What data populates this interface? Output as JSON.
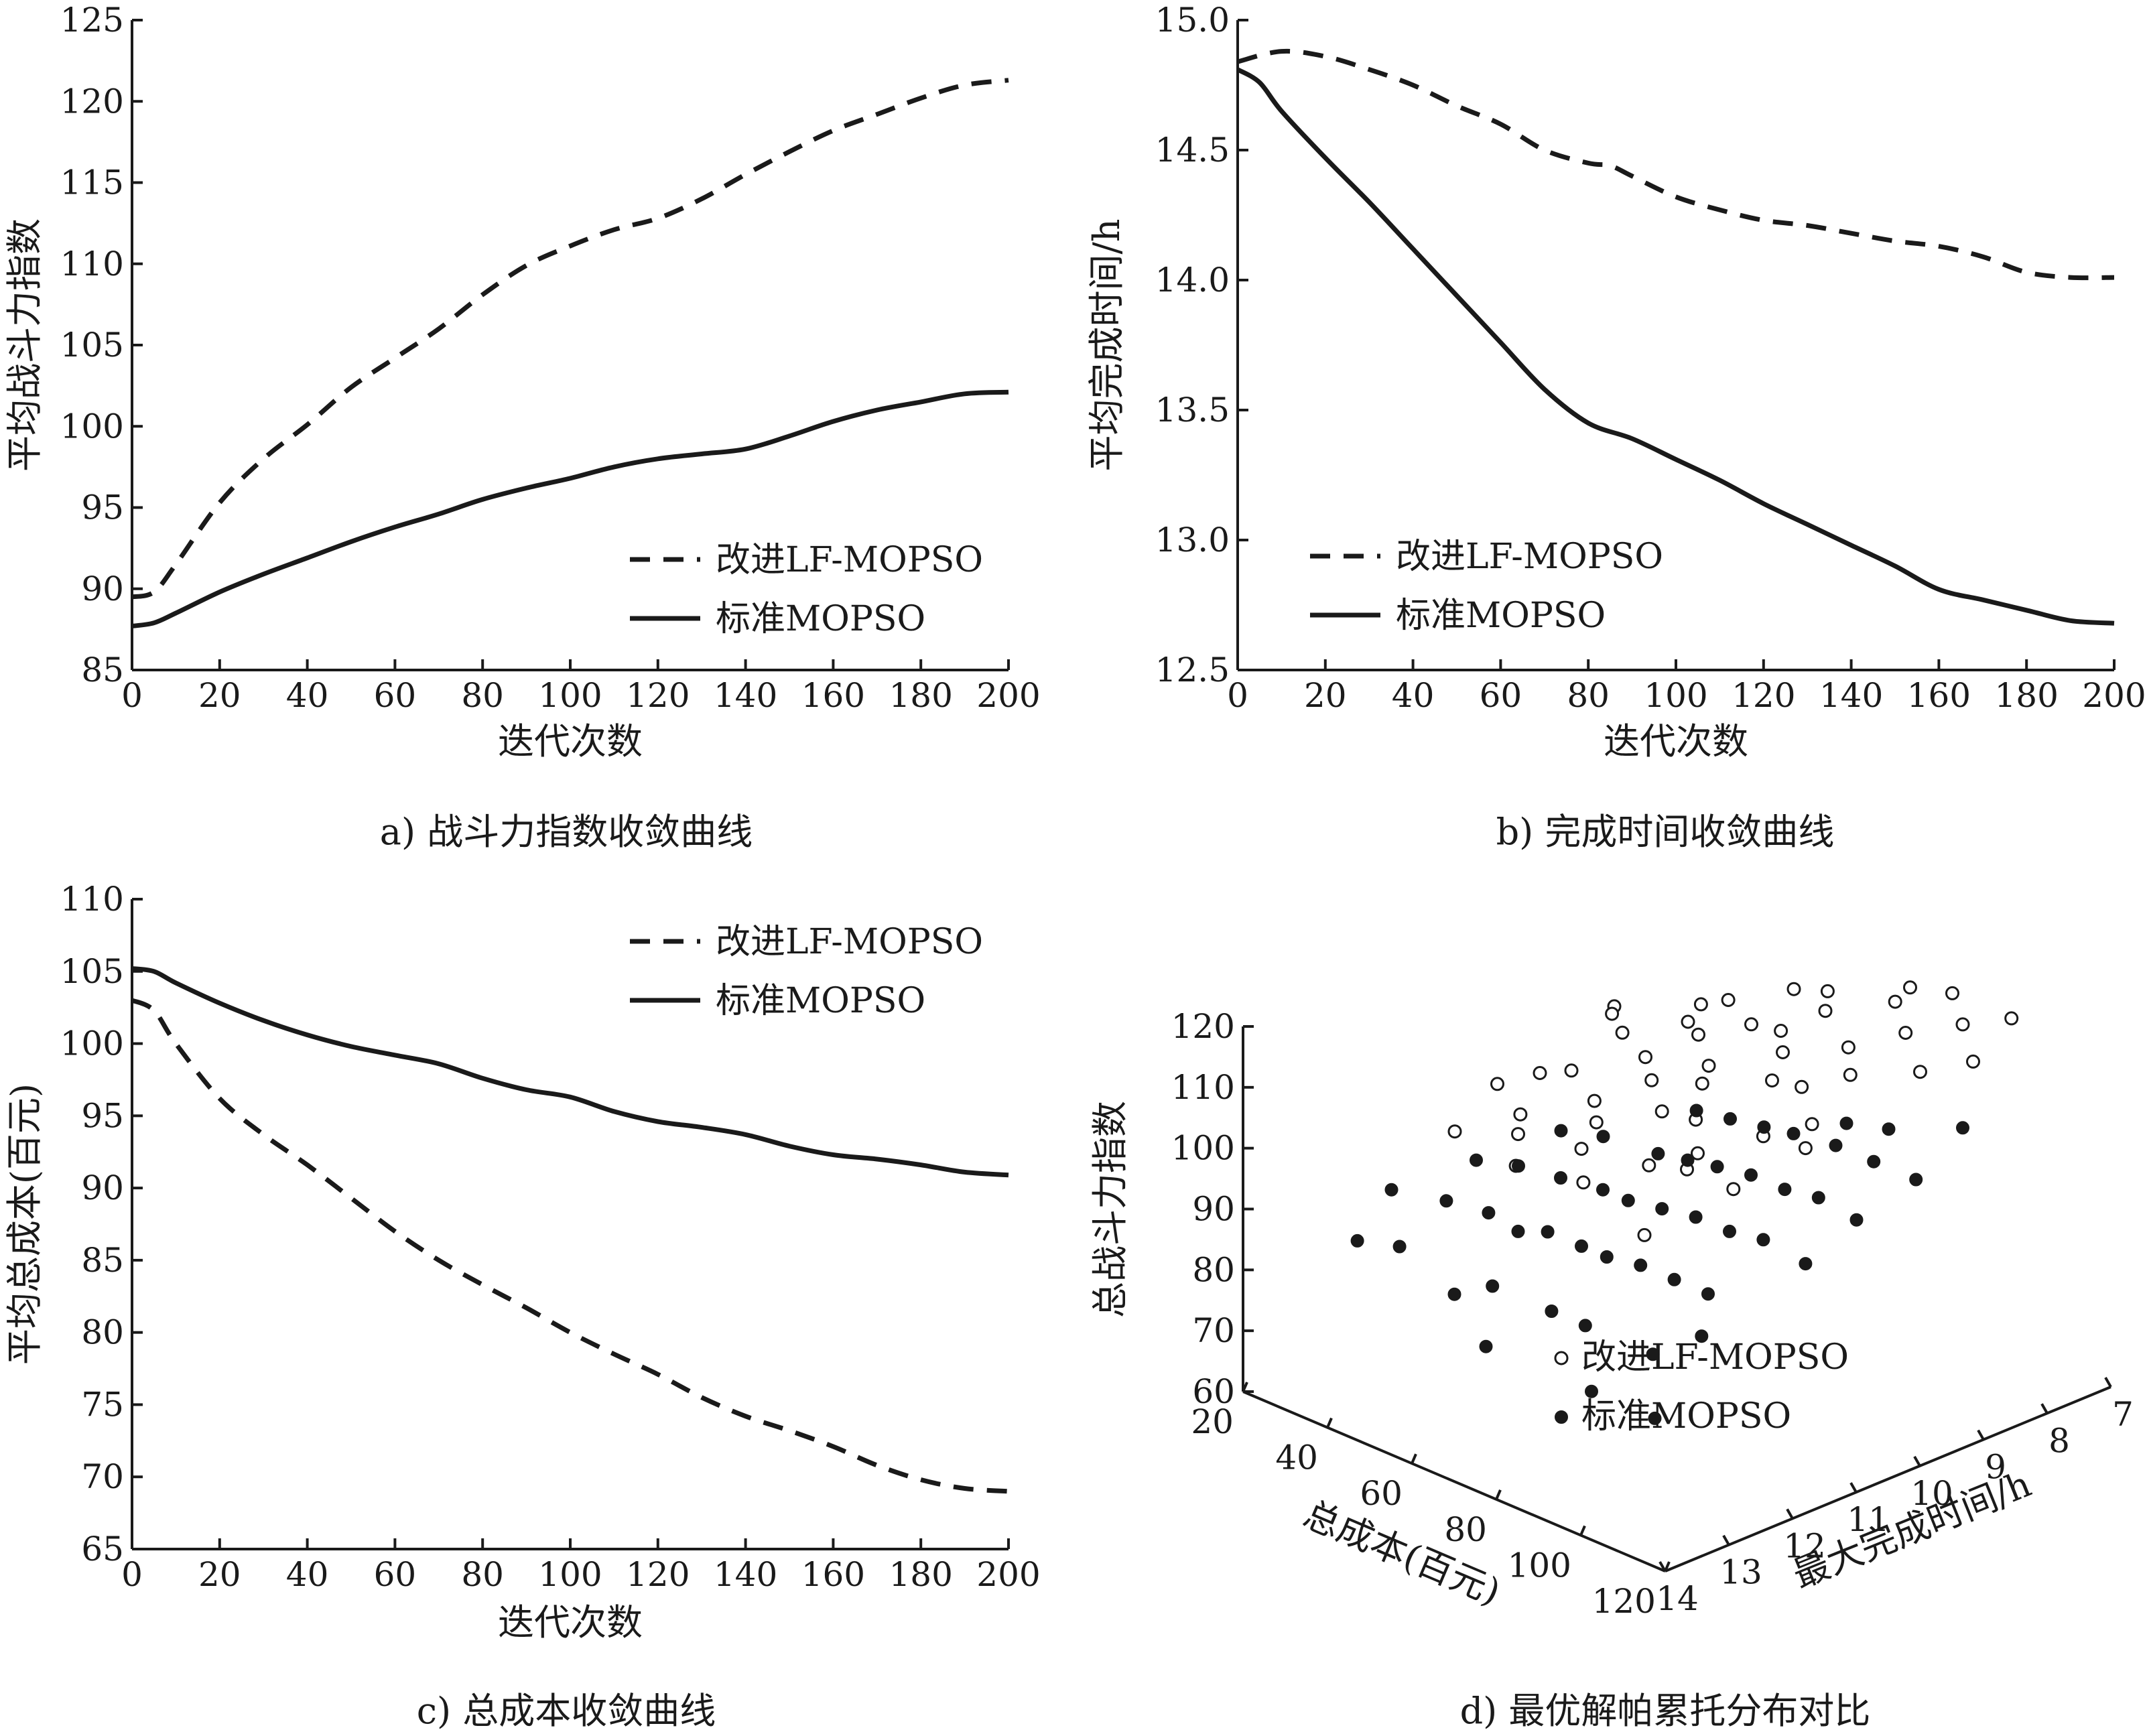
{
  "figure": {
    "caption_a": "a) 战斗力指数收敛曲线",
    "caption_b": "b) 完成时间收敛曲线",
    "caption_c": "c) 总成本收敛曲线",
    "caption_d": "d) 最优解帕累托分布对比"
  },
  "chart_data": [
    {
      "type": "line",
      "panel": "a",
      "xlabel": "迭代次数",
      "ylabel": "平均战斗力指数",
      "xlim": [
        0,
        200
      ],
      "ylim": [
        85,
        125
      ],
      "xticks": [
        0,
        20,
        40,
        60,
        80,
        100,
        120,
        140,
        160,
        180,
        200
      ],
      "yticks": [
        85,
        90,
        95,
        100,
        105,
        110,
        115,
        120,
        125
      ],
      "legend_position": "bottom-right",
      "series": [
        {
          "name": "改进LF-MOPSO",
          "style": "dashed",
          "x": [
            0,
            5,
            10,
            20,
            30,
            40,
            50,
            60,
            70,
            80,
            90,
            100,
            110,
            120,
            130,
            140,
            150,
            160,
            170,
            180,
            190,
            200
          ],
          "y": [
            89.5,
            89.8,
            91.5,
            95.3,
            98.0,
            100.1,
            102.4,
            104.2,
            106.0,
            108.1,
            109.9,
            111.1,
            112.1,
            112.8,
            114.0,
            115.5,
            116.9,
            118.2,
            119.2,
            120.2,
            121.0,
            121.3
          ]
        },
        {
          "name": "标准MOPSO",
          "style": "solid",
          "x": [
            0,
            5,
            10,
            20,
            30,
            40,
            50,
            60,
            70,
            80,
            90,
            100,
            110,
            120,
            130,
            140,
            150,
            160,
            170,
            180,
            190,
            200
          ],
          "y": [
            87.7,
            87.9,
            88.5,
            89.8,
            90.9,
            91.9,
            92.9,
            93.8,
            94.6,
            95.5,
            96.2,
            96.8,
            97.5,
            98.0,
            98.3,
            98.6,
            99.4,
            100.3,
            101.0,
            101.5,
            102.0,
            102.1
          ]
        }
      ]
    },
    {
      "type": "line",
      "panel": "b",
      "xlabel": "迭代次数",
      "ylabel": "平均完成时间/h",
      "xlim": [
        0,
        200
      ],
      "ylim": [
        12.5,
        15.0
      ],
      "xticks": [
        0,
        20,
        40,
        60,
        80,
        100,
        120,
        140,
        160,
        180,
        200
      ],
      "yticks": [
        12.5,
        13.0,
        13.5,
        14.0,
        14.5,
        15.0
      ],
      "ytick_labels": [
        "12.5",
        "13.0",
        "13.5",
        "14.0",
        "14.5",
        "15.0"
      ],
      "legend_position": "bottom-left",
      "series": [
        {
          "name": "改进LF-MOPSO",
          "style": "dashed",
          "x": [
            0,
            10,
            20,
            30,
            40,
            50,
            60,
            70,
            80,
            85,
            90,
            100,
            110,
            120,
            130,
            140,
            150,
            160,
            170,
            180,
            190,
            200
          ],
          "y": [
            14.84,
            14.88,
            14.86,
            14.81,
            14.75,
            14.67,
            14.6,
            14.5,
            14.45,
            14.44,
            14.4,
            14.32,
            14.27,
            14.23,
            14.21,
            14.18,
            14.15,
            14.13,
            14.09,
            14.03,
            14.01,
            14.01
          ]
        },
        {
          "name": "标准MOPSO",
          "style": "solid",
          "x": [
            0,
            5,
            10,
            20,
            30,
            40,
            50,
            60,
            70,
            80,
            90,
            100,
            110,
            120,
            130,
            140,
            150,
            160,
            170,
            180,
            190,
            200
          ],
          "y": [
            14.81,
            14.76,
            14.65,
            14.47,
            14.3,
            14.12,
            13.94,
            13.76,
            13.58,
            13.45,
            13.39,
            13.31,
            13.23,
            13.14,
            13.06,
            12.98,
            12.9,
            12.81,
            12.77,
            12.73,
            12.69,
            12.68
          ]
        }
      ]
    },
    {
      "type": "line",
      "panel": "c",
      "xlabel": "迭代次数",
      "ylabel": "平均总成本(百元)",
      "xlim": [
        0,
        200
      ],
      "ylim": [
        65,
        110
      ],
      "xticks": [
        0,
        20,
        40,
        60,
        80,
        100,
        120,
        140,
        160,
        180,
        200
      ],
      "yticks": [
        65,
        70,
        75,
        80,
        85,
        90,
        95,
        100,
        105,
        110
      ],
      "legend_position": "top-right",
      "series": [
        {
          "name": "改进LF-MOPSO",
          "style": "dashed",
          "x": [
            0,
            5,
            10,
            20,
            30,
            40,
            50,
            60,
            70,
            80,
            90,
            100,
            110,
            120,
            130,
            140,
            150,
            160,
            170,
            180,
            190,
            200
          ],
          "y": [
            103.0,
            102.3,
            100.0,
            96.2,
            93.7,
            91.6,
            89.3,
            87.0,
            85.0,
            83.3,
            81.7,
            80.0,
            78.5,
            77.1,
            75.5,
            74.2,
            73.2,
            72.1,
            70.8,
            69.8,
            69.2,
            69.0
          ]
        },
        {
          "name": "标准MOPSO",
          "style": "solid",
          "x": [
            0,
            5,
            10,
            20,
            30,
            40,
            50,
            60,
            70,
            80,
            90,
            100,
            110,
            120,
            130,
            140,
            150,
            160,
            170,
            180,
            190,
            200
          ],
          "y": [
            105.2,
            105.0,
            104.2,
            102.8,
            101.6,
            100.6,
            99.8,
            99.2,
            98.6,
            97.6,
            96.8,
            96.3,
            95.3,
            94.6,
            94.2,
            93.7,
            92.9,
            92.3,
            92.0,
            91.6,
            91.1,
            90.9
          ]
        }
      ]
    },
    {
      "type": "scatter",
      "panel": "d",
      "xlabel": "总成本(百元)",
      "ylabel": "总战斗力指数",
      "zlabel": "最大完成时间/h",
      "cost_ticks": [
        20,
        40,
        60,
        80,
        100,
        120
      ],
      "time_ticks": [
        14,
        13,
        12,
        11,
        10,
        9,
        8,
        7
      ],
      "power_ticks": [
        60,
        70,
        80,
        90,
        100,
        110,
        120
      ],
      "legend_position": "lower-right",
      "series": [
        {
          "name": "改进LF-MOPSO",
          "marker": "open-circle",
          "points": [
            [
              25,
              8.5,
              101
            ],
            [
              30,
              10,
              98
            ],
            [
              32,
              9,
              104
            ],
            [
              35,
              11,
              102
            ],
            [
              38,
              8,
              103
            ],
            [
              40,
              12,
              100
            ],
            [
              42,
              9.5,
              106
            ],
            [
              45,
              10.5,
              105
            ],
            [
              48,
              11.5,
              103
            ],
            [
              50,
              9,
              108
            ],
            [
              52,
              8.5,
              110
            ],
            [
              55,
              10,
              108
            ],
            [
              55,
              12,
              104
            ],
            [
              58,
              11,
              106
            ],
            [
              60,
              9.5,
              111
            ],
            [
              60,
              8,
              112
            ],
            [
              62,
              12.5,
              103
            ],
            [
              64,
              10.5,
              109
            ],
            [
              65,
              9,
              112
            ],
            [
              66,
              11.5,
              107
            ],
            [
              68,
              8,
              114
            ],
            [
              70,
              10,
              111
            ],
            [
              70,
              12,
              106
            ],
            [
              72,
              9,
              113
            ],
            [
              74,
              11,
              109
            ],
            [
              75,
              8.5,
              115
            ],
            [
              76,
              10.5,
              112
            ],
            [
              78,
              12.5,
              105
            ],
            [
              80,
              9.5,
              114
            ],
            [
              80,
              7.5,
              116
            ],
            [
              82,
              11,
              110
            ],
            [
              84,
              8,
              117
            ],
            [
              85,
              10,
              113
            ],
            [
              86,
              12,
              108
            ],
            [
              88,
              9,
              115
            ],
            [
              90,
              11.5,
              109
            ],
            [
              90,
              7.5,
              118
            ],
            [
              92,
              10,
              114
            ],
            [
              94,
              8.5,
              117
            ],
            [
              95,
              12,
              110
            ],
            [
              96,
              9.5,
              115
            ],
            [
              98,
              11,
              112
            ],
            [
              100,
              8,
              118
            ],
            [
              100,
              13,
              105
            ],
            [
              102,
              10.5,
              113
            ],
            [
              104,
              7.5,
              118
            ],
            [
              105,
              9,
              116
            ],
            [
              106,
              12,
              110
            ],
            [
              108,
              11,
              113
            ],
            [
              110,
              8.5,
              117
            ]
          ]
        },
        {
          "name": "标准MOPSO",
          "marker": "filled-circle",
          "points": [
            [
              25,
              12,
              86
            ],
            [
              30,
              11,
              88
            ],
            [
              32,
              13,
              84
            ],
            [
              35,
              10,
              90
            ],
            [
              38,
              12,
              88
            ],
            [
              40,
              11,
              90
            ],
            [
              42,
              13,
              86
            ],
            [
              45,
              10,
              92
            ],
            [
              48,
              12,
              89
            ],
            [
              50,
              11,
              91
            ],
            [
              52,
              9,
              94
            ],
            [
              55,
              12,
              88
            ],
            [
              55,
              13,
              82
            ],
            [
              58,
              10,
              93
            ],
            [
              60,
              11,
              92
            ],
            [
              60,
              9,
              95
            ],
            [
              62,
              12,
              90
            ],
            [
              64,
              13,
              86
            ],
            [
              65,
              10,
              94
            ],
            [
              66,
              11,
              92
            ],
            [
              68,
              9,
              96
            ],
            [
              70,
              12,
              90
            ],
            [
              70,
              13.5,
              80
            ],
            [
              72,
              10,
              95
            ],
            [
              74,
              11,
              93
            ],
            [
              75,
              9,
              97
            ],
            [
              76,
              12,
              90
            ],
            [
              78,
              13,
              86
            ],
            [
              80,
              10,
              96
            ],
            [
              80,
              8.5,
              98
            ],
            [
              82,
              11,
              94
            ],
            [
              84,
              12,
              91
            ],
            [
              85,
              9,
              98
            ],
            [
              86,
              13,
              86
            ],
            [
              88,
              10,
              96
            ],
            [
              90,
              11,
              94
            ],
            [
              90,
              8.5,
              100
            ],
            [
              92,
              12,
              91
            ],
            [
              94,
              9,
              98
            ],
            [
              95,
              13.5,
              80
            ],
            [
              96,
              10,
              97
            ],
            [
              98,
              11,
              95
            ],
            [
              100,
              8,
              101
            ],
            [
              100,
              12,
              91
            ],
            [
              102,
              13,
              86
            ],
            [
              104,
              9,
              98
            ],
            [
              105,
              10,
              96
            ],
            [
              106,
              12.5,
              88
            ],
            [
              108,
              11,
              94
            ],
            [
              110,
              13.5,
              80
            ]
          ]
        }
      ]
    }
  ]
}
